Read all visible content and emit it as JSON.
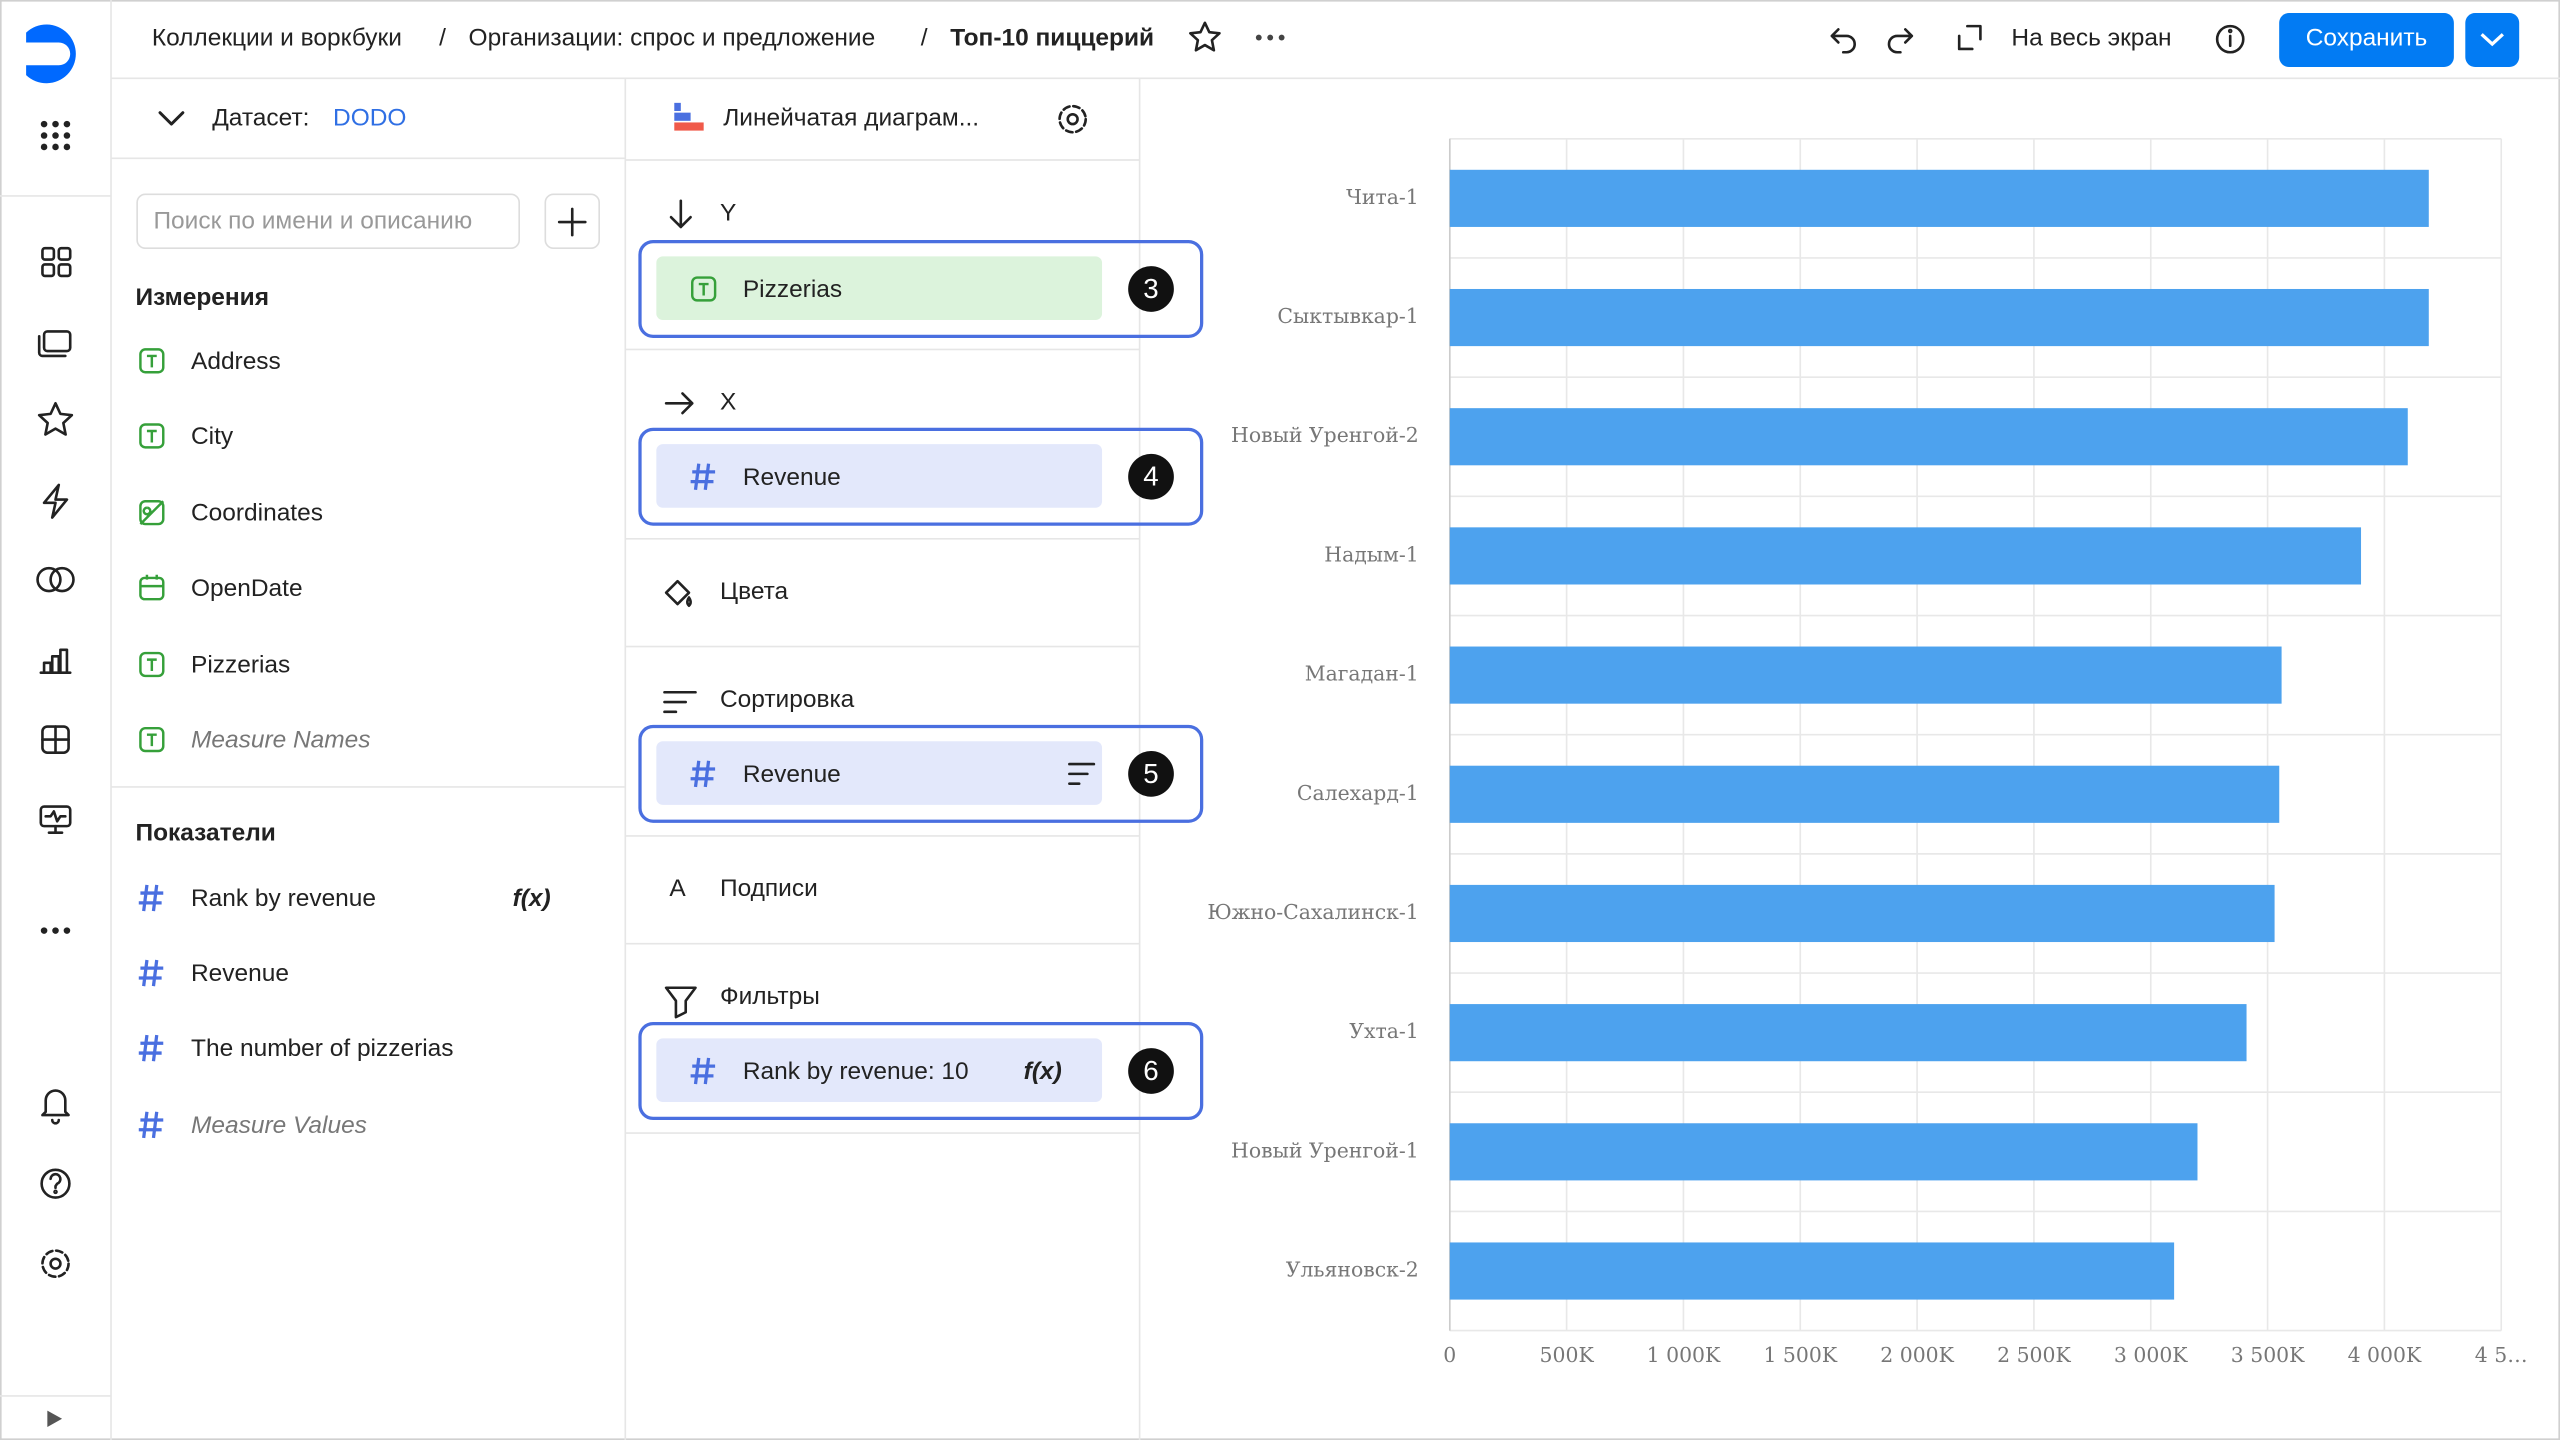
{
  "header": {
    "breadcrumbs": [
      "Коллекции и воркбуки",
      "Организации: спрос и предложение"
    ],
    "separator": "/",
    "title": "Топ-10 пиццерий",
    "fullscreen": "На весь экран",
    "save": "Сохранить"
  },
  "dataset": {
    "label": "Датасет:",
    "name": "DODO",
    "search_placeholder": "Поиск по имени и описанию"
  },
  "dimensions": {
    "title": "Измерения",
    "items": [
      "Address",
      "City",
      "Coordinates",
      "OpenDate",
      "Pizzerias",
      "Measure Names"
    ]
  },
  "measures": {
    "title": "Показатели",
    "items": [
      "Rank by revenue",
      "Revenue",
      "The number of pizzerias",
      "Measure Values"
    ],
    "formula": "f(x)"
  },
  "visualization": {
    "type": "Линейчатая диаграм...",
    "y": {
      "label": "Y",
      "field": "Pizzerias",
      "badge": "3"
    },
    "x": {
      "label": "X",
      "field": "Revenue",
      "badge": "4"
    },
    "colors": {
      "label": "Цвета"
    },
    "sort": {
      "label": "Сортировка",
      "field": "Revenue",
      "badge": "5"
    },
    "labels": {
      "label": "Подписи",
      "icon": "A"
    },
    "filters": {
      "label": "Фильтры",
      "field": "Rank by revenue: 10",
      "formula": "f(x)",
      "badge": "6"
    }
  },
  "chart_data": {
    "type": "bar",
    "orientation": "horizontal",
    "color": "#4da2ee",
    "grid": true,
    "categories": [
      "Чита-1",
      "Сыктывкар-1",
      "Новый Уренгой-2",
      "Надым-1",
      "Магадан-1",
      "Салехард-1",
      "Южно-Сахалинск-1",
      "Ухта-1",
      "Новый Уренгой-1",
      "Ульяновск-2"
    ],
    "values": [
      4190000,
      4190000,
      4100000,
      3900000,
      3560000,
      3550000,
      3530000,
      3410000,
      3200000,
      3100000
    ],
    "xlim": [
      0,
      4500000
    ],
    "xticks": [
      0,
      {
        "value": 500000,
        "label": "500K"
      },
      {
        "value": 1000000,
        "label": "1 000K"
      },
      {
        "value": 1500000,
        "label": "1 500K"
      },
      {
        "value": 2000000,
        "label": "2 000K"
      },
      {
        "value": 2500000,
        "label": "2 500K"
      },
      {
        "value": 3000000,
        "label": "3 000K"
      },
      {
        "value": 3500000,
        "label": "3 500K"
      },
      {
        "value": 4000000,
        "label": "4 000K"
      },
      {
        "value": 4500000,
        "label": "4 5…"
      }
    ]
  }
}
